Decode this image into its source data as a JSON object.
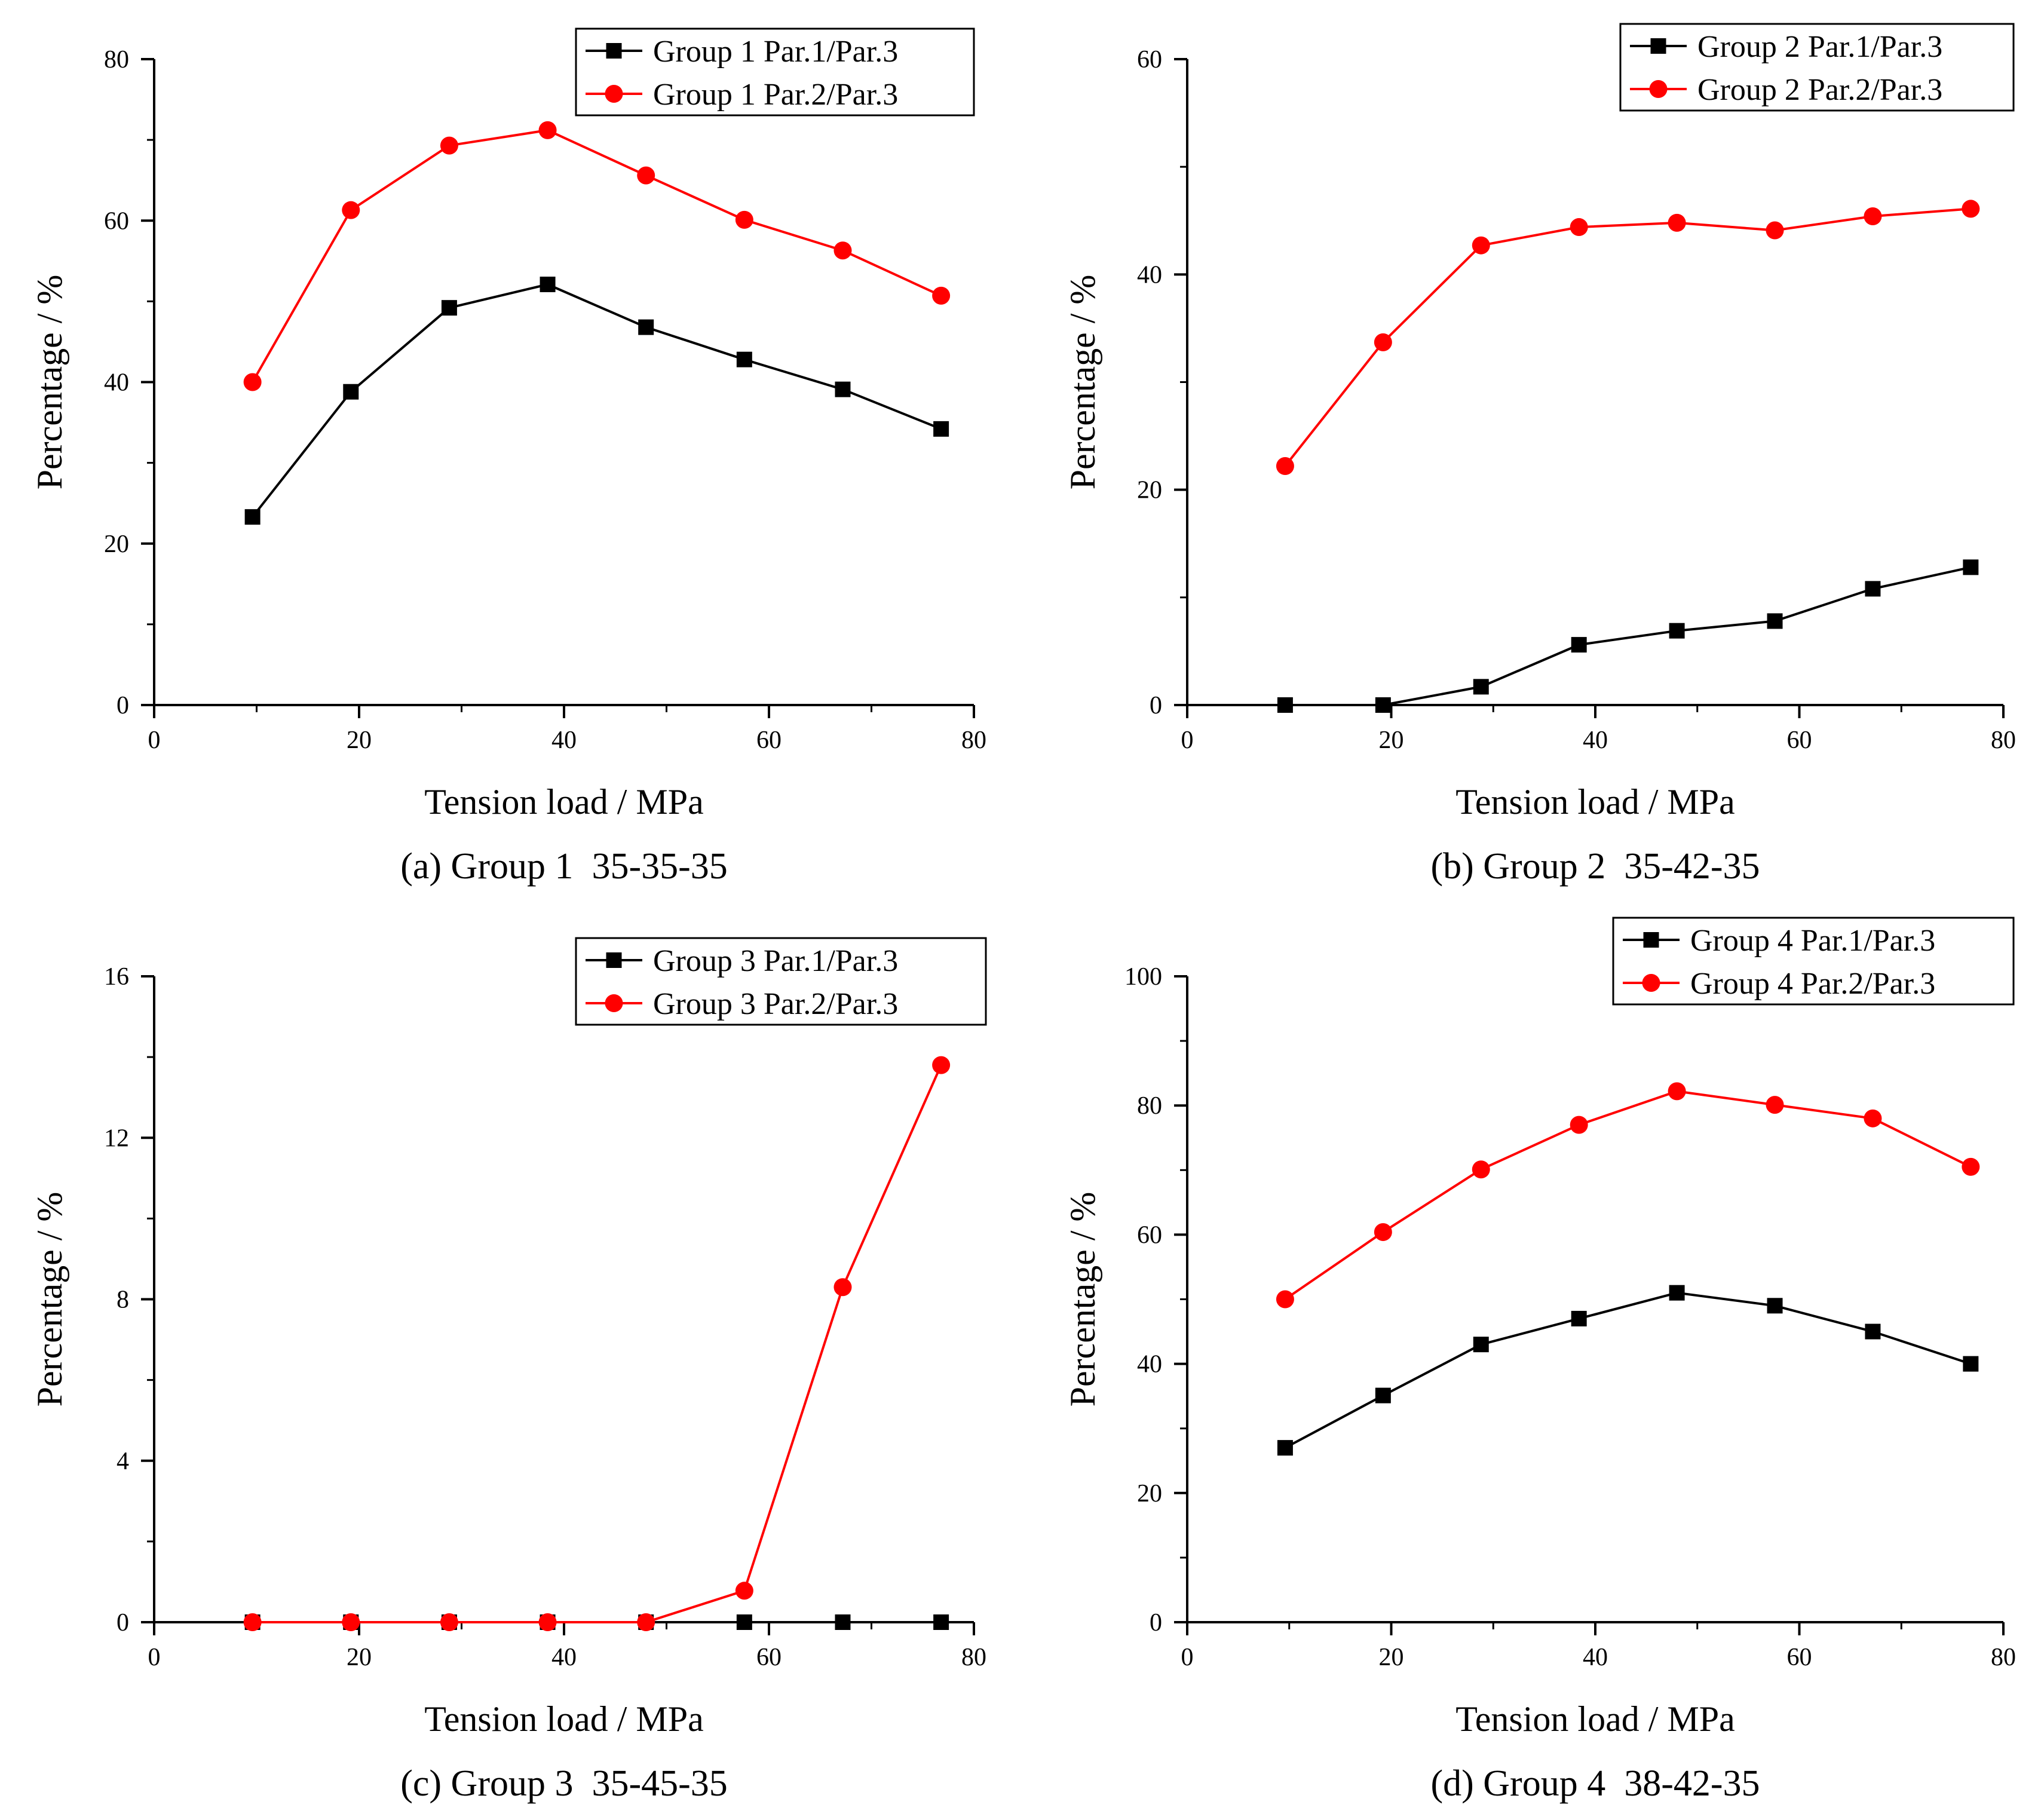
{
  "chart_data": [
    {
      "id": "a",
      "type": "line",
      "caption": "(a) Group 1  35-35-35",
      "xlabel": "Tension load / MPa",
      "ylabel": "Percentage / %",
      "xlim": [
        0,
        80
      ],
      "ylim": [
        0,
        80
      ],
      "xticks": [
        0,
        20,
        40,
        60,
        80
      ],
      "yticks": [
        0,
        20,
        40,
        60,
        80
      ],
      "xtick_labels": [
        "0",
        "20",
        "40",
        "60",
        "80"
      ],
      "ytick_labels": [
        "0",
        "20",
        "40",
        "60",
        "80"
      ],
      "grid": false,
      "legend_position": "top-right",
      "x": [
        9.6,
        19.2,
        28.8,
        38.4,
        48,
        57.6,
        67.2,
        76.8
      ],
      "series": [
        {
          "name": "Group 1 Par.1/Par.3",
          "color": "#000000",
          "marker": "square",
          "values": [
            23.3,
            38.8,
            49.2,
            52.1,
            46.8,
            42.8,
            39.1,
            34.2
          ]
        },
        {
          "name": "Group 1 Par.2/Par.3",
          "color": "#ff0000",
          "marker": "circle",
          "values": [
            40.0,
            61.3,
            69.3,
            71.2,
            65.6,
            60.1,
            56.3,
            50.7
          ]
        }
      ]
    },
    {
      "id": "b",
      "type": "line",
      "caption": "(b) Group 2  35-42-35",
      "xlabel": "Tension load / MPa",
      "ylabel": "Percentage / %",
      "xlim": [
        0,
        80
      ],
      "ylim": [
        0,
        60
      ],
      "xticks": [
        0,
        20,
        40,
        60,
        80
      ],
      "yticks": [
        0,
        20,
        40,
        60
      ],
      "xtick_labels": [
        "0",
        "20",
        "40",
        "60",
        "80"
      ],
      "ytick_labels": [
        "0",
        "20",
        "40",
        "60"
      ],
      "grid": false,
      "legend_position": "top-right",
      "x": [
        9.6,
        19.2,
        28.8,
        38.4,
        48,
        57.6,
        67.2,
        76.8
      ],
      "series": [
        {
          "name": "Group 2 Par.1/Par.3",
          "color": "#000000",
          "marker": "square",
          "values": [
            0.0,
            0.0,
            1.7,
            5.6,
            6.9,
            7.8,
            10.8,
            12.8
          ]
        },
        {
          "name": "Group 2 Par.2/Par.3",
          "color": "#ff0000",
          "marker": "circle",
          "values": [
            22.2,
            33.7,
            42.7,
            44.4,
            44.8,
            44.1,
            45.4,
            46.1
          ]
        }
      ]
    },
    {
      "id": "c",
      "type": "line",
      "caption": "(c) Group 3  35-45-35",
      "xlabel": "Tension load / MPa",
      "ylabel": "Percentage / %",
      "xlim": [
        0,
        80
      ],
      "ylim": [
        0,
        16
      ],
      "xticks": [
        0,
        20,
        40,
        60,
        80
      ],
      "yticks": [
        0,
        4,
        8,
        12,
        16
      ],
      "xtick_labels": [
        "0",
        "20",
        "40",
        "60",
        "80"
      ],
      "ytick_labels": [
        "0",
        "4",
        "8",
        "12",
        "16"
      ],
      "grid": false,
      "legend_position": "top-right",
      "x": [
        9.6,
        19.2,
        28.8,
        38.4,
        48,
        57.6,
        67.2,
        76.8
      ],
      "series": [
        {
          "name": "Group 3 Par.1/Par.3",
          "color": "#000000",
          "marker": "square",
          "values": [
            0,
            0,
            0,
            0,
            0,
            0,
            0,
            0
          ]
        },
        {
          "name": "Group 3 Par.2/Par.3",
          "color": "#ff0000",
          "marker": "circle",
          "values": [
            0,
            0,
            0,
            0,
            0,
            0.78,
            8.3,
            13.8
          ]
        }
      ]
    },
    {
      "id": "d",
      "type": "line",
      "caption": "(d) Group 4  38-42-35",
      "xlabel": "Tension load / MPa",
      "ylabel": "Percentage / %",
      "xlim": [
        0,
        80
      ],
      "ylim": [
        0,
        100
      ],
      "xticks": [
        0,
        20,
        40,
        60,
        80
      ],
      "yticks": [
        0,
        20,
        40,
        60,
        80,
        100
      ],
      "xtick_labels": [
        "0",
        "20",
        "40",
        "60",
        "80"
      ],
      "ytick_labels": [
        "0",
        "20",
        "40",
        "60",
        "80",
        "100"
      ],
      "grid": false,
      "legend_position": "top-right",
      "x": [
        9.6,
        19.2,
        28.8,
        38.4,
        48,
        57.6,
        67.2,
        76.8
      ],
      "series": [
        {
          "name": "Group 4 Par.1/Par.3",
          "color": "#000000",
          "marker": "square",
          "values": [
            27.0,
            35.1,
            43.0,
            47.0,
            51.0,
            49.0,
            45.0,
            40.0
          ]
        },
        {
          "name": "Group 4 Par.2/Par.3",
          "color": "#ff0000",
          "marker": "circle",
          "values": [
            50.0,
            60.4,
            70.1,
            77.0,
            82.2,
            80.1,
            78.0,
            70.5
          ]
        }
      ]
    }
  ]
}
